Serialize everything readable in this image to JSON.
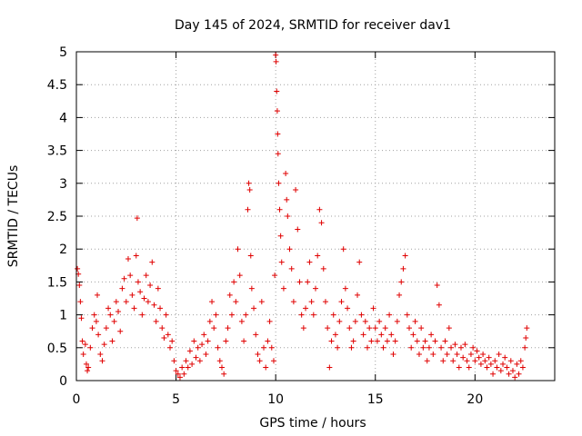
{
  "chart_data": {
    "type": "scatter",
    "title": "Day 145 of 2024, SRMTID for receiver dav1",
    "xlabel": "GPS time / hours",
    "ylabel": "SRMTID / TECUs",
    "xlim": [
      0,
      24
    ],
    "ylim": [
      0,
      5
    ],
    "grid": true,
    "legend": "none",
    "marker": "+",
    "series_color": "#e00000",
    "xticks": [
      {
        "value": 0,
        "label": "0"
      },
      {
        "value": 5,
        "label": "5"
      },
      {
        "value": 10,
        "label": "10"
      },
      {
        "value": 15,
        "label": "15"
      },
      {
        "value": 20,
        "label": "20"
      }
    ],
    "yticks": [
      {
        "value": 0,
        "label": "0"
      },
      {
        "value": 0.5,
        "label": "0.5"
      },
      {
        "value": 1,
        "label": "1"
      },
      {
        "value": 1.5,
        "label": "1.5"
      },
      {
        "value": 2,
        "label": "2"
      },
      {
        "value": 2.5,
        "label": "2.5"
      },
      {
        "value": 3,
        "label": "3"
      },
      {
        "value": 3.5,
        "label": "3.5"
      },
      {
        "value": 4,
        "label": "4"
      },
      {
        "value": 4.5,
        "label": "4.5"
      },
      {
        "value": 5,
        "label": "5"
      }
    ],
    "series": [
      {
        "name": "SRMTID",
        "points": [
          [
            0.05,
            1.7
          ],
          [
            0.1,
            1.62
          ],
          [
            0.15,
            1.45
          ],
          [
            0.2,
            1.2
          ],
          [
            0.25,
            0.95
          ],
          [
            0.3,
            0.6
          ],
          [
            0.35,
            0.4
          ],
          [
            0.45,
            0.55
          ],
          [
            0.5,
            0.25
          ],
          [
            0.55,
            0.15
          ],
          [
            0.6,
            0.2
          ],
          [
            0.7,
            0.5
          ],
          [
            0.8,
            0.8
          ],
          [
            0.9,
            1.0
          ],
          [
            1.0,
            0.9
          ],
          [
            1.05,
            1.3
          ],
          [
            1.1,
            0.7
          ],
          [
            1.2,
            0.4
          ],
          [
            1.3,
            0.3
          ],
          [
            1.4,
            0.55
          ],
          [
            1.5,
            0.8
          ],
          [
            1.6,
            1.1
          ],
          [
            1.7,
            1.0
          ],
          [
            1.8,
            0.6
          ],
          [
            1.9,
            0.9
          ],
          [
            2.0,
            1.2
          ],
          [
            2.1,
            1.05
          ],
          [
            2.2,
            0.75
          ],
          [
            2.3,
            1.4
          ],
          [
            2.4,
            1.55
          ],
          [
            2.5,
            1.2
          ],
          [
            2.6,
            1.85
          ],
          [
            2.7,
            1.6
          ],
          [
            2.8,
            1.3
          ],
          [
            2.9,
            1.1
          ],
          [
            3.0,
            1.9
          ],
          [
            3.05,
            2.47
          ],
          [
            3.1,
            1.5
          ],
          [
            3.2,
            1.35
          ],
          [
            3.3,
            1.0
          ],
          [
            3.4,
            1.25
          ],
          [
            3.5,
            1.6
          ],
          [
            3.6,
            1.2
          ],
          [
            3.7,
            1.45
          ],
          [
            3.8,
            1.8
          ],
          [
            3.9,
            1.15
          ],
          [
            4.0,
            0.9
          ],
          [
            4.1,
            1.4
          ],
          [
            4.2,
            1.1
          ],
          [
            4.3,
            0.8
          ],
          [
            4.4,
            0.65
          ],
          [
            4.5,
            1.0
          ],
          [
            4.6,
            0.7
          ],
          [
            4.7,
            0.5
          ],
          [
            4.8,
            0.6
          ],
          [
            4.9,
            0.3
          ],
          [
            5.0,
            0.15
          ],
          [
            5.1,
            0.1
          ],
          [
            5.2,
            0.05
          ],
          [
            5.3,
            0.2
          ],
          [
            5.4,
            0.1
          ],
          [
            5.5,
            0.3
          ],
          [
            5.6,
            0.2
          ],
          [
            5.7,
            0.45
          ],
          [
            5.8,
            0.25
          ],
          [
            5.9,
            0.6
          ],
          [
            6.0,
            0.35
          ],
          [
            6.1,
            0.5
          ],
          [
            6.2,
            0.3
          ],
          [
            6.3,
            0.55
          ],
          [
            6.4,
            0.7
          ],
          [
            6.5,
            0.4
          ],
          [
            6.6,
            0.6
          ],
          [
            6.7,
            0.9
          ],
          [
            6.8,
            1.2
          ],
          [
            6.9,
            0.8
          ],
          [
            7.0,
            1.0
          ],
          [
            7.1,
            0.5
          ],
          [
            7.2,
            0.3
          ],
          [
            7.3,
            0.2
          ],
          [
            7.4,
            0.1
          ],
          [
            7.5,
            0.6
          ],
          [
            7.6,
            0.8
          ],
          [
            7.7,
            1.3
          ],
          [
            7.8,
            1.0
          ],
          [
            7.9,
            1.5
          ],
          [
            8.0,
            1.2
          ],
          [
            8.1,
            2.0
          ],
          [
            8.2,
            1.6
          ],
          [
            8.3,
            0.9
          ],
          [
            8.4,
            0.6
          ],
          [
            8.5,
            1.0
          ],
          [
            8.6,
            2.6
          ],
          [
            8.65,
            3.0
          ],
          [
            8.7,
            2.9
          ],
          [
            8.75,
            1.9
          ],
          [
            8.8,
            1.4
          ],
          [
            8.9,
            1.1
          ],
          [
            9.0,
            0.7
          ],
          [
            9.1,
            0.4
          ],
          [
            9.2,
            0.3
          ],
          [
            9.3,
            1.2
          ],
          [
            9.4,
            0.5
          ],
          [
            9.5,
            0.2
          ],
          [
            9.6,
            0.6
          ],
          [
            9.7,
            0.9
          ],
          [
            9.8,
            0.5
          ],
          [
            9.9,
            0.3
          ],
          [
            9.95,
            1.6
          ],
          [
            10.0,
            4.95
          ],
          [
            10.02,
            4.85
          ],
          [
            10.05,
            4.4
          ],
          [
            10.08,
            4.1
          ],
          [
            10.1,
            3.75
          ],
          [
            10.12,
            3.45
          ],
          [
            10.15,
            3.0
          ],
          [
            10.2,
            2.6
          ],
          [
            10.25,
            2.2
          ],
          [
            10.3,
            1.8
          ],
          [
            10.4,
            1.4
          ],
          [
            10.5,
            3.15
          ],
          [
            10.55,
            2.75
          ],
          [
            10.6,
            2.5
          ],
          [
            10.7,
            2.0
          ],
          [
            10.8,
            1.7
          ],
          [
            10.9,
            1.2
          ],
          [
            11.0,
            2.9
          ],
          [
            11.1,
            2.3
          ],
          [
            11.2,
            1.5
          ],
          [
            11.3,
            1.0
          ],
          [
            11.4,
            0.8
          ],
          [
            11.5,
            1.1
          ],
          [
            11.6,
            1.5
          ],
          [
            11.7,
            1.8
          ],
          [
            11.8,
            1.2
          ],
          [
            11.9,
            1.0
          ],
          [
            12.0,
            1.4
          ],
          [
            12.1,
            1.9
          ],
          [
            12.2,
            2.6
          ],
          [
            12.3,
            2.4
          ],
          [
            12.4,
            1.7
          ],
          [
            12.5,
            1.2
          ],
          [
            12.6,
            0.8
          ],
          [
            12.7,
            0.2
          ],
          [
            12.8,
            0.6
          ],
          [
            12.9,
            1.0
          ],
          [
            13.0,
            0.7
          ],
          [
            13.1,
            0.5
          ],
          [
            13.2,
            0.9
          ],
          [
            13.3,
            1.2
          ],
          [
            13.4,
            2.0
          ],
          [
            13.5,
            1.4
          ],
          [
            13.6,
            1.1
          ],
          [
            13.7,
            0.8
          ],
          [
            13.8,
            0.5
          ],
          [
            13.9,
            0.6
          ],
          [
            14.0,
            0.9
          ],
          [
            14.1,
            1.3
          ],
          [
            14.2,
            1.8
          ],
          [
            14.3,
            1.0
          ],
          [
            14.4,
            0.7
          ],
          [
            14.5,
            0.9
          ],
          [
            14.6,
            0.5
          ],
          [
            14.7,
            0.8
          ],
          [
            14.8,
            0.6
          ],
          [
            14.9,
            1.1
          ],
          [
            15.0,
            0.8
          ],
          [
            15.1,
            0.6
          ],
          [
            15.2,
            0.9
          ],
          [
            15.3,
            0.7
          ],
          [
            15.4,
            0.5
          ],
          [
            15.5,
            0.8
          ],
          [
            15.6,
            0.6
          ],
          [
            15.7,
            1.0
          ],
          [
            15.8,
            0.7
          ],
          [
            15.9,
            0.4
          ],
          [
            16.0,
            0.6
          ],
          [
            16.1,
            0.9
          ],
          [
            16.2,
            1.3
          ],
          [
            16.3,
            1.5
          ],
          [
            16.4,
            1.7
          ],
          [
            16.5,
            1.9
          ],
          [
            16.6,
            1.0
          ],
          [
            16.7,
            0.8
          ],
          [
            16.8,
            0.5
          ],
          [
            16.9,
            0.7
          ],
          [
            17.0,
            0.9
          ],
          [
            17.1,
            0.6
          ],
          [
            17.2,
            0.4
          ],
          [
            17.3,
            0.8
          ],
          [
            17.4,
            0.5
          ],
          [
            17.5,
            0.6
          ],
          [
            17.6,
            0.3
          ],
          [
            17.7,
            0.5
          ],
          [
            17.8,
            0.7
          ],
          [
            17.9,
            0.4
          ],
          [
            18.0,
            0.6
          ],
          [
            18.1,
            1.45
          ],
          [
            18.2,
            1.15
          ],
          [
            18.3,
            0.5
          ],
          [
            18.4,
            0.3
          ],
          [
            18.5,
            0.6
          ],
          [
            18.6,
            0.4
          ],
          [
            18.7,
            0.8
          ],
          [
            18.8,
            0.5
          ],
          [
            18.9,
            0.3
          ],
          [
            19.0,
            0.55
          ],
          [
            19.1,
            0.4
          ],
          [
            19.2,
            0.2
          ],
          [
            19.3,
            0.5
          ],
          [
            19.4,
            0.35
          ],
          [
            19.5,
            0.55
          ],
          [
            19.6,
            0.3
          ],
          [
            19.7,
            0.2
          ],
          [
            19.8,
            0.4
          ],
          [
            19.9,
            0.5
          ],
          [
            20.0,
            0.3
          ],
          [
            20.1,
            0.45
          ],
          [
            20.2,
            0.35
          ],
          [
            20.3,
            0.25
          ],
          [
            20.4,
            0.4
          ],
          [
            20.5,
            0.3
          ],
          [
            20.6,
            0.2
          ],
          [
            20.7,
            0.35
          ],
          [
            20.8,
            0.25
          ],
          [
            20.9,
            0.1
          ],
          [
            21.0,
            0.3
          ],
          [
            21.1,
            0.2
          ],
          [
            21.2,
            0.4
          ],
          [
            21.3,
            0.15
          ],
          [
            21.4,
            0.25
          ],
          [
            21.5,
            0.35
          ],
          [
            21.6,
            0.2
          ],
          [
            21.7,
            0.1
          ],
          [
            21.8,
            0.3
          ],
          [
            21.9,
            0.15
          ],
          [
            22.0,
            0.05
          ],
          [
            22.1,
            0.25
          ],
          [
            22.2,
            0.1
          ],
          [
            22.3,
            0.3
          ],
          [
            22.4,
            0.2
          ],
          [
            22.5,
            0.5
          ],
          [
            22.55,
            0.65
          ],
          [
            22.6,
            0.8
          ]
        ]
      }
    ]
  }
}
